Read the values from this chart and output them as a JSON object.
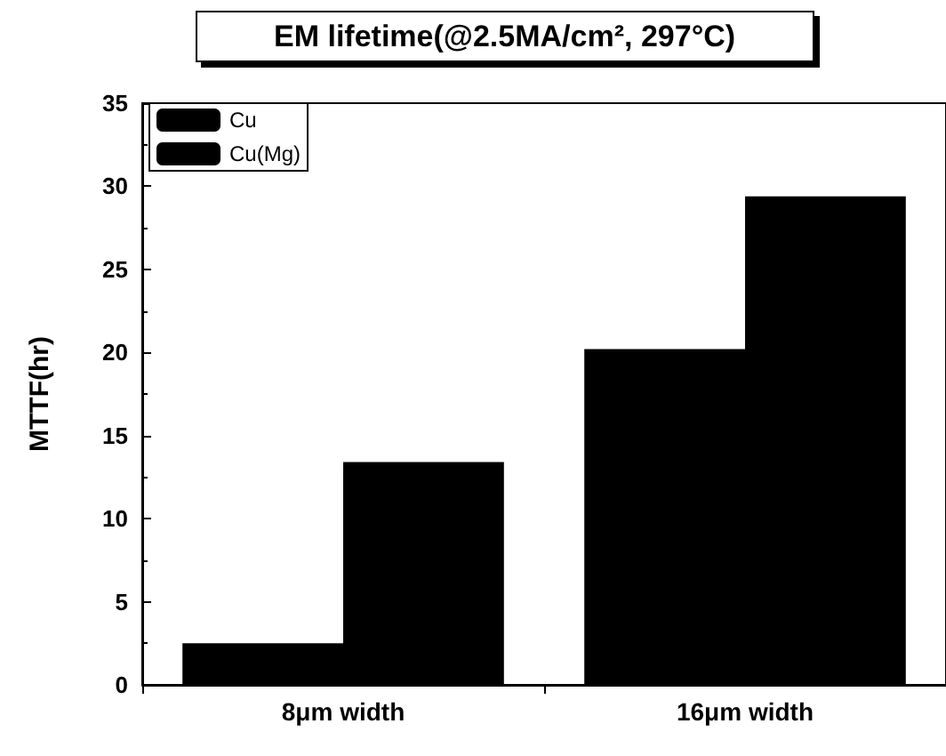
{
  "chart_data": {
    "type": "bar",
    "title": "EM lifetime(@2.5MA/cm², 297°C)",
    "ylabel": "MTTF(hr)",
    "categories": [
      "8μm width",
      "16μm width"
    ],
    "series": [
      {
        "name": "Cu",
        "color": "#000000",
        "values": [
          2.5,
          20.2
        ]
      },
      {
        "name": "Cu(Mg)",
        "color": "#000000",
        "values": [
          13.4,
          29.4
        ]
      }
    ],
    "ylim": [
      0,
      35
    ],
    "yticks": [
      0,
      5,
      10,
      15,
      20,
      25,
      30,
      35
    ],
    "grid": false,
    "legend": "top left"
  }
}
